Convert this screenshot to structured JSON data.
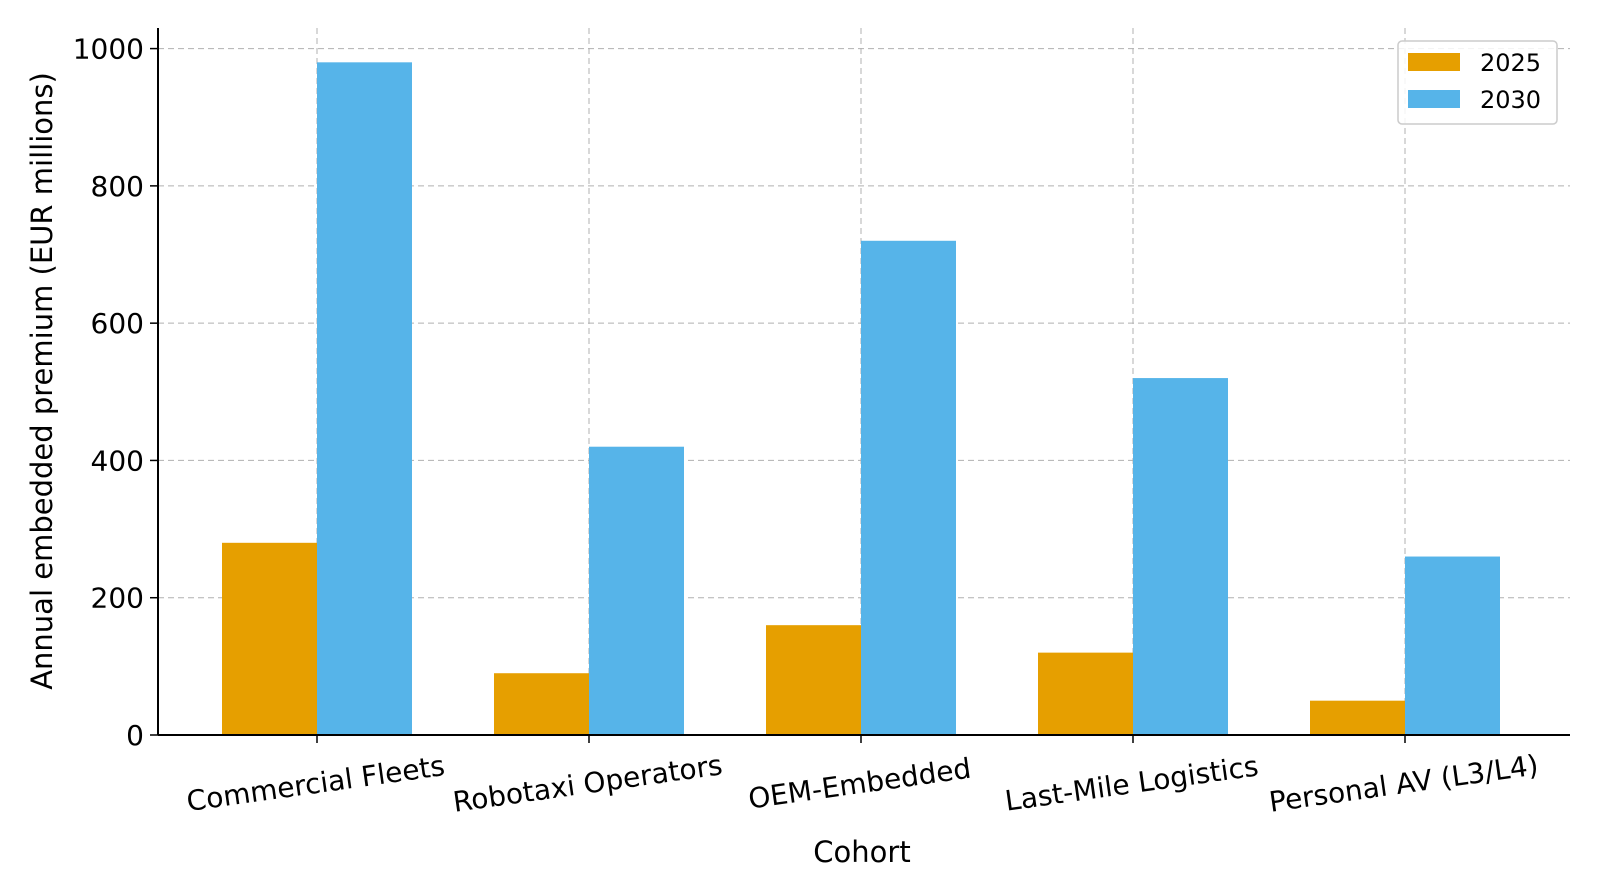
{
  "chart_data": {
    "type": "bar",
    "title": "",
    "xlabel": "Cohort",
    "ylabel": "Annual embedded premium (EUR millions)",
    "categories": [
      "Commercial Fleets",
      "Robotaxi Operators",
      "OEM-Embedded",
      "Last-Mile Logistics",
      "Personal AV (L3/L4)"
    ],
    "series": [
      {
        "name": "2025",
        "color": "#E69F00",
        "values": [
          280,
          90,
          160,
          120,
          50
        ]
      },
      {
        "name": "2030",
        "color": "#56B4E9",
        "values": [
          980,
          420,
          720,
          520,
          260
        ]
      }
    ],
    "ylim": [
      0,
      1030
    ],
    "yticks": [
      "0",
      "200",
      "400",
      "600",
      "800",
      "1000"
    ],
    "grid": true,
    "legend_position": "top-right"
  }
}
